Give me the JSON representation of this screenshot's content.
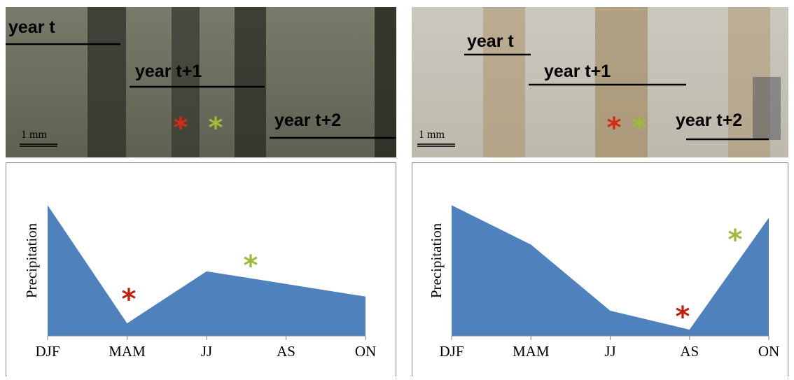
{
  "photos": [
    {
      "labels": [
        "year t",
        "year t+1",
        "year t+2"
      ],
      "scale": "1 mm",
      "markers": [
        {
          "text": "*",
          "color": "#d42a16"
        },
        {
          "text": "*",
          "color": "#9dbb3c"
        }
      ]
    },
    {
      "labels": [
        "year t",
        "year t+1",
        "year t+2"
      ],
      "scale": "1 mm",
      "markers": [
        {
          "text": "*",
          "color": "#d42a16"
        },
        {
          "text": "*",
          "color": "#9dbb3c"
        }
      ]
    }
  ],
  "chart_data": [
    {
      "type": "area",
      "categories": [
        "DJF",
        "MAM",
        "JJ",
        "AS",
        "ON"
      ],
      "values": [
        83,
        8,
        41,
        33,
        25
      ],
      "color": "#4f81bd",
      "ylim": [
        0,
        100
      ],
      "y_label": "Precipitation",
      "annotations": [
        {
          "text": "*",
          "color": "#c0220e"
        },
        {
          "text": "*",
          "color": "#9dbb3c"
        }
      ]
    },
    {
      "type": "area",
      "categories": [
        "DJF",
        "MAM",
        "JJ",
        "AS",
        "ON"
      ],
      "values": [
        83,
        58,
        16,
        4,
        75
      ],
      "color": "#4f81bd",
      "ylim": [
        0,
        100
      ],
      "y_label": "Precipitation",
      "annotations": [
        {
          "text": "*",
          "color": "#c0220e"
        },
        {
          "text": "*",
          "color": "#9dbb3c"
        }
      ]
    }
  ]
}
